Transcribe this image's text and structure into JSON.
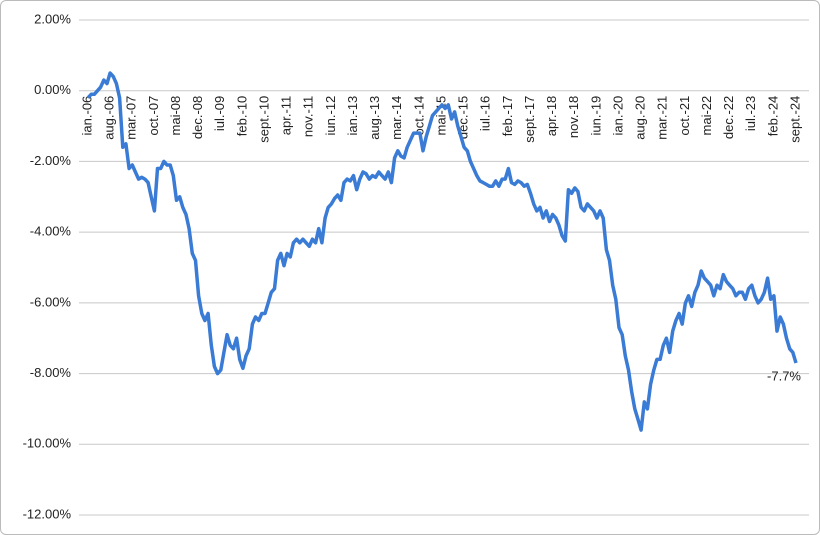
{
  "chart_data": {
    "type": "line",
    "categories": [
      "ian.-06",
      null,
      null,
      null,
      null,
      null,
      null,
      "aug.-06",
      null,
      null,
      null,
      null,
      null,
      null,
      "mar.-07",
      null,
      null,
      null,
      null,
      null,
      null,
      "oct.-07",
      null,
      null,
      null,
      null,
      null,
      null,
      "mai-08",
      null,
      null,
      null,
      null,
      null,
      null,
      "dec.-08",
      null,
      null,
      null,
      null,
      null,
      null,
      "iul.-09",
      null,
      null,
      null,
      null,
      null,
      null,
      "feb.-10",
      null,
      null,
      null,
      null,
      null,
      null,
      "sept.-10",
      null,
      null,
      null,
      null,
      null,
      null,
      "apr.-11",
      null,
      null,
      null,
      null,
      null,
      null,
      "nov.-11",
      null,
      null,
      null,
      null,
      null,
      null,
      "iun.-12",
      null,
      null,
      null,
      null,
      null,
      null,
      "ian.-13",
      null,
      null,
      null,
      null,
      null,
      null,
      "aug.-13",
      null,
      null,
      null,
      null,
      null,
      null,
      "mar.-14",
      null,
      null,
      null,
      null,
      null,
      null,
      "oct.-14",
      null,
      null,
      null,
      null,
      null,
      null,
      "mai-15",
      null,
      null,
      null,
      null,
      null,
      null,
      "dec.-15",
      null,
      null,
      null,
      null,
      null,
      null,
      "iul.-16",
      null,
      null,
      null,
      null,
      null,
      null,
      "feb.-17",
      null,
      null,
      null,
      null,
      null,
      null,
      "sept.-17",
      null,
      null,
      null,
      null,
      null,
      null,
      "apr.-18",
      null,
      null,
      null,
      null,
      null,
      null,
      "nov.-18",
      null,
      null,
      null,
      null,
      null,
      null,
      "iun.-19",
      null,
      null,
      null,
      null,
      null,
      null,
      "ian.-20",
      null,
      null,
      null,
      null,
      null,
      null,
      "aug.-20",
      null,
      null,
      null,
      null,
      null,
      null,
      "mar.-21",
      null,
      null,
      null,
      null,
      null,
      null,
      "oct.-21",
      null,
      null,
      null,
      null,
      null,
      null,
      "mai-22",
      null,
      null,
      null,
      null,
      null,
      null,
      "dec.-22",
      null,
      null,
      null,
      null,
      null,
      null,
      "iul.-23",
      null,
      null,
      null,
      null,
      null,
      null,
      "feb.-24",
      null,
      null,
      null,
      null,
      null,
      null,
      "sept.-24"
    ],
    "series": [
      {
        "color": "#3a7bd5",
        "values": [
          -0.2,
          -0.1,
          -0.1,
          0.0,
          0.1,
          0.3,
          0.2,
          0.5,
          0.4,
          0.2,
          -0.2,
          -1.6,
          -1.5,
          -2.2,
          -2.1,
          -2.3,
          -2.5,
          -2.45,
          -2.5,
          -2.6,
          -3.0,
          -3.4,
          -2.2,
          -2.2,
          -2.0,
          -2.1,
          -2.1,
          -2.4,
          -3.1,
          -3.0,
          -3.3,
          -3.5,
          -3.9,
          -4.6,
          -4.8,
          -5.8,
          -6.3,
          -6.5,
          -6.3,
          -7.2,
          -7.8,
          -8.0,
          -7.9,
          -7.4,
          -6.9,
          -7.2,
          -7.3,
          -7.0,
          -7.6,
          -7.85,
          -7.5,
          -7.3,
          -6.6,
          -6.4,
          -6.5,
          -6.3,
          -6.3,
          -6.0,
          -5.7,
          -5.6,
          -4.8,
          -4.6,
          -4.95,
          -4.6,
          -4.7,
          -4.3,
          -4.2,
          -4.3,
          -4.2,
          -4.3,
          -4.4,
          -4.2,
          -4.3,
          -3.9,
          -4.3,
          -3.6,
          -3.3,
          -3.2,
          -3.05,
          -2.95,
          -3.1,
          -2.6,
          -2.5,
          -2.55,
          -2.4,
          -2.8,
          -2.5,
          -2.3,
          -2.35,
          -2.5,
          -2.4,
          -2.45,
          -2.3,
          -2.4,
          -2.5,
          -2.3,
          -2.6,
          -1.9,
          -1.7,
          -1.85,
          -1.9,
          -1.6,
          -1.4,
          -1.2,
          -1.2,
          -1.2,
          -1.7,
          -1.3,
          -1.0,
          -0.7,
          -0.6,
          -0.5,
          -0.4,
          -0.5,
          -0.4,
          -0.8,
          -0.6,
          -1.0,
          -1.3,
          -1.6,
          -1.7,
          -2.0,
          -2.2,
          -2.4,
          -2.55,
          -2.6,
          -2.65,
          -2.7,
          -2.7,
          -2.55,
          -2.7,
          -2.5,
          -2.5,
          -2.2,
          -2.6,
          -2.65,
          -2.55,
          -2.6,
          -2.7,
          -2.65,
          -2.9,
          -3.2,
          -3.4,
          -3.3,
          -3.6,
          -3.4,
          -3.7,
          -3.5,
          -3.6,
          -3.8,
          -4.1,
          -4.25,
          -2.8,
          -2.9,
          -2.75,
          -2.85,
          -3.3,
          -3.4,
          -3.2,
          -3.3,
          -3.4,
          -3.6,
          -3.4,
          -3.6,
          -4.5,
          -4.8,
          -5.5,
          -5.9,
          -6.7,
          -6.9,
          -7.5,
          -7.9,
          -8.5,
          -9.0,
          -9.3,
          -9.6,
          -8.8,
          -9.0,
          -8.3,
          -7.9,
          -7.6,
          -7.6,
          -7.2,
          -7.0,
          -7.4,
          -6.8,
          -6.5,
          -6.3,
          -6.6,
          -6.0,
          -5.8,
          -6.1,
          -5.7,
          -5.5,
          -5.1,
          -5.3,
          -5.4,
          -5.5,
          -5.8,
          -5.5,
          -5.6,
          -5.2,
          -5.4,
          -5.5,
          -5.6,
          -5.8,
          -5.7,
          -5.7,
          -5.9,
          -5.6,
          -5.5,
          -5.8,
          -6.0,
          -5.9,
          -5.7,
          -5.3,
          -5.9,
          -5.8,
          -6.8,
          -6.4,
          -6.6,
          -7.0,
          -7.3,
          -7.4,
          -7.7
        ],
        "value_labels": [
          null,
          null,
          null,
          null,
          null,
          null,
          null,
          null,
          null,
          null,
          null,
          null,
          null,
          null,
          null,
          null,
          null,
          null,
          null,
          null,
          null,
          null,
          null,
          null,
          null,
          null,
          null,
          null,
          null,
          null,
          null,
          null,
          null,
          null,
          null,
          null,
          null,
          null,
          null,
          null,
          null,
          null,
          null,
          null,
          null,
          null,
          null,
          null,
          null,
          null,
          null,
          null,
          null,
          null,
          null,
          null,
          null,
          null,
          null,
          null,
          null,
          null,
          null,
          null,
          null,
          null,
          null,
          null,
          null,
          null,
          null,
          null,
          null,
          null,
          null,
          null,
          null,
          null,
          null,
          null,
          null,
          null,
          null,
          null,
          null,
          null,
          null,
          null,
          null,
          null,
          null,
          null,
          null,
          null,
          null,
          null,
          null,
          null,
          null,
          null,
          null,
          null,
          null,
          null,
          null,
          null,
          null,
          null,
          null,
          null,
          null,
          null,
          null,
          null,
          null,
          null,
          null,
          null,
          null,
          null,
          null,
          null,
          null,
          null,
          null,
          null,
          null,
          null,
          null,
          null,
          null,
          null,
          null,
          null,
          null,
          null,
          null,
          null,
          null,
          null,
          null,
          null,
          null,
          null,
          null,
          null,
          null,
          null,
          null,
          null,
          null,
          null,
          null,
          null,
          null,
          null,
          null,
          null,
          null,
          null,
          null,
          null,
          null,
          null,
          null,
          null,
          null,
          null,
          null,
          null,
          null,
          null,
          null,
          null,
          null,
          null,
          null,
          null,
          null,
          null,
          null,
          null,
          null,
          null,
          null,
          null,
          null,
          null,
          null,
          null,
          null,
          null,
          null,
          null,
          null,
          null,
          null,
          null,
          null,
          null,
          null,
          null,
          null,
          null,
          null,
          null,
          null,
          null,
          null,
          null,
          null,
          null,
          null,
          null,
          null,
          null,
          null,
          null,
          null,
          null,
          null,
          null,
          null,
          null,
          "-7.7%"
        ]
      }
    ],
    "ylim": [
      -12,
      2
    ],
    "yticks": [
      {
        "value": 2,
        "label": "2.00%"
      },
      {
        "value": 0,
        "label": "0.00%"
      },
      {
        "value": -2,
        "label": "-2.00%"
      },
      {
        "value": -4,
        "label": "-4.00%"
      },
      {
        "value": -6,
        "label": "-6.00%"
      },
      {
        "value": -8,
        "label": "-8.00%"
      },
      {
        "value": -10,
        "label": "-10.00%"
      },
      {
        "value": -12,
        "label": "-12.00%"
      }
    ],
    "grid": true
  }
}
